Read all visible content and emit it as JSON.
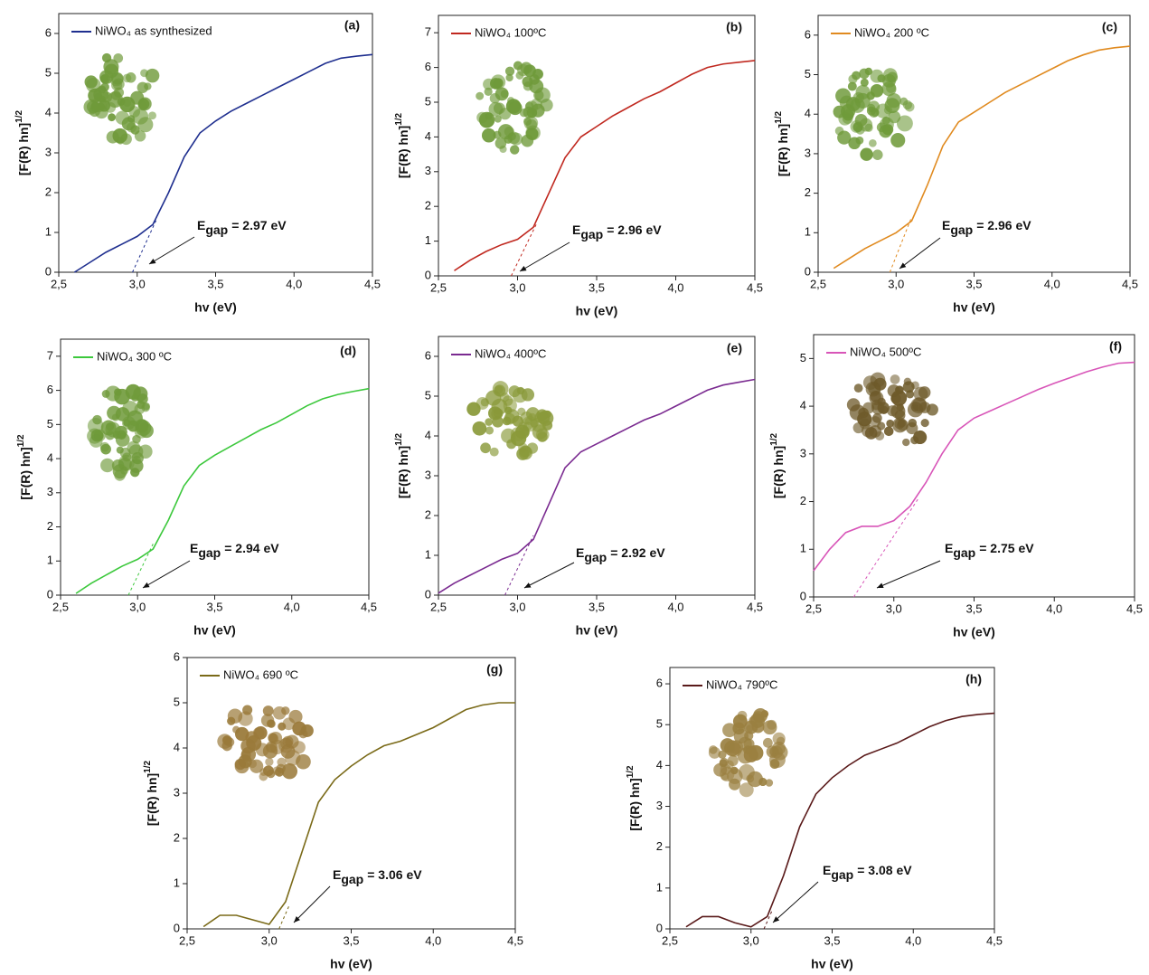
{
  "chart_data": [
    {
      "type": "line",
      "panel": "(a)",
      "x_label": "hv (eV)",
      "y_label": "[F(R) hn]",
      "y_label_exponent": "1/2",
      "x": [
        2.5,
        2.6,
        2.7,
        2.8,
        2.9,
        3.0,
        3.1,
        3.2,
        3.3,
        3.4,
        3.5,
        3.6,
        3.7,
        3.8,
        3.9,
        4.0,
        4.1,
        4.2,
        4.3,
        4.4,
        4.5
      ],
      "series": [
        {
          "name": "NiWO₄ as synthesized",
          "color": "#1f2f8f",
          "values": [
            null,
            0,
            0.25,
            0.5,
            0.7,
            0.9,
            1.2,
            2.0,
            2.9,
            3.5,
            3.8,
            4.05,
            4.25,
            4.45,
            4.65,
            4.85,
            5.05,
            5.25,
            5.38,
            5.43,
            5.47
          ]
        }
      ],
      "tangent": {
        "x": [
          2.97,
          3.12
        ],
        "values": [
          0,
          1.3
        ]
      },
      "annotation": {
        "symbol": "E",
        "subscript": "gap",
        "text": "= 2.97 eV"
      },
      "xlim": [
        2.5,
        4.5
      ],
      "ylim": [
        0,
        6.5
      ],
      "xticks": [
        {
          "value": 2.5,
          "label": "2,5"
        },
        {
          "value": 3.0,
          "label": "3,0"
        },
        {
          "value": 3.5,
          "label": "3,5"
        },
        {
          "value": 4.0,
          "label": "4,0"
        },
        {
          "value": 4.5,
          "label": "4,5"
        }
      ],
      "yticks": [
        0,
        1,
        2,
        3,
        4,
        5,
        6
      ]
    },
    {
      "type": "line",
      "panel": "(b)",
      "x_label": "hv (eV)",
      "y_label": "[F(R) hn]",
      "y_label_exponent": "1/2",
      "x": [
        2.5,
        2.6,
        2.7,
        2.8,
        2.9,
        3.0,
        3.1,
        3.2,
        3.3,
        3.4,
        3.5,
        3.6,
        3.7,
        3.8,
        3.9,
        4.0,
        4.1,
        4.2,
        4.3,
        4.4,
        4.5
      ],
      "series": [
        {
          "name": "NiWO₄ 100ºC",
          "color": "#c0281f",
          "values": [
            null,
            0.15,
            0.45,
            0.7,
            0.9,
            1.05,
            1.4,
            2.4,
            3.4,
            4.0,
            4.3,
            4.6,
            4.85,
            5.1,
            5.3,
            5.55,
            5.8,
            6.0,
            6.1,
            6.15,
            6.2
          ]
        }
      ],
      "tangent": {
        "x": [
          2.96,
          3.12
        ],
        "values": [
          0,
          1.5
        ]
      },
      "annotation": {
        "symbol": "E",
        "subscript": "gap",
        "text": "= 2.96 eV"
      },
      "xlim": [
        2.5,
        4.5
      ],
      "ylim": [
        0,
        7.5
      ],
      "xticks": [
        {
          "value": 2.5,
          "label": "2,5"
        },
        {
          "value": 3.0,
          "label": "3,0"
        },
        {
          "value": 3.5,
          "label": "3,5"
        },
        {
          "value": 4.0,
          "label": "4,0"
        },
        {
          "value": 4.5,
          "label": "4,5"
        }
      ],
      "yticks": [
        0,
        1,
        2,
        3,
        4,
        5,
        6,
        7
      ]
    },
    {
      "type": "line",
      "panel": "(c)",
      "x_label": "hv (eV)",
      "y_label": "[F(R) hn]",
      "y_label_exponent": "1/2",
      "x": [
        2.5,
        2.6,
        2.7,
        2.8,
        2.9,
        3.0,
        3.1,
        3.2,
        3.3,
        3.4,
        3.5,
        3.6,
        3.7,
        3.8,
        3.9,
        4.0,
        4.1,
        4.2,
        4.3,
        4.4,
        4.5
      ],
      "series": [
        {
          "name": "NiWO₄ 200 ºC",
          "color": "#e08a1f",
          "values": [
            null,
            0.1,
            0.35,
            0.6,
            0.8,
            1.0,
            1.3,
            2.2,
            3.2,
            3.8,
            4.05,
            4.3,
            4.55,
            4.75,
            4.95,
            5.15,
            5.35,
            5.5,
            5.62,
            5.68,
            5.72
          ]
        }
      ],
      "tangent": {
        "x": [
          2.96,
          3.1
        ],
        "values": [
          0,
          1.4
        ]
      },
      "annotation": {
        "symbol": "E",
        "subscript": "gap",
        "text": "= 2.96 eV"
      },
      "xlim": [
        2.5,
        4.5
      ],
      "ylim": [
        0,
        6.5
      ],
      "xticks": [
        {
          "value": 2.5,
          "label": "2,5"
        },
        {
          "value": 3.0,
          "label": "3,0"
        },
        {
          "value": 3.5,
          "label": "3,5"
        },
        {
          "value": 4.0,
          "label": "4,0"
        },
        {
          "value": 4.5,
          "label": "4,5"
        }
      ],
      "yticks": [
        0,
        1,
        2,
        3,
        4,
        5,
        6
      ]
    },
    {
      "type": "line",
      "panel": "(d)",
      "x_label": "hv (eV)",
      "y_label": "[F(R) hn]",
      "y_label_exponent": "1/2",
      "x": [
        2.5,
        2.6,
        2.7,
        2.8,
        2.9,
        3.0,
        3.1,
        3.2,
        3.3,
        3.4,
        3.5,
        3.6,
        3.7,
        3.8,
        3.9,
        4.0,
        4.1,
        4.2,
        4.3,
        4.4,
        4.5
      ],
      "series": [
        {
          "name": "NiWO₄ 300 ºC",
          "color": "#3cc83c",
          "values": [
            null,
            0.05,
            0.35,
            0.6,
            0.85,
            1.05,
            1.35,
            2.2,
            3.2,
            3.8,
            4.1,
            4.35,
            4.6,
            4.85,
            5.05,
            5.3,
            5.55,
            5.75,
            5.88,
            5.97,
            6.05
          ]
        }
      ],
      "tangent": {
        "x": [
          2.94,
          3.1
        ],
        "values": [
          0,
          1.5
        ]
      },
      "annotation": {
        "symbol": "E",
        "subscript": "gap",
        "text": "= 2.94 eV"
      },
      "xlim": [
        2.5,
        4.5
      ],
      "ylim": [
        0,
        7.5
      ],
      "xticks": [
        {
          "value": 2.5,
          "label": "2,5"
        },
        {
          "value": 3.0,
          "label": "3,0"
        },
        {
          "value": 3.5,
          "label": "3,5"
        },
        {
          "value": 4.0,
          "label": "4,0"
        },
        {
          "value": 4.5,
          "label": "4,5"
        }
      ],
      "yticks": [
        0,
        1,
        2,
        3,
        4,
        5,
        6,
        7
      ]
    },
    {
      "type": "line",
      "panel": "(e)",
      "x_label": "hv (eV)",
      "y_label": "[F(R) hn]",
      "y_label_exponent": "1/2",
      "x": [
        2.5,
        2.6,
        2.7,
        2.8,
        2.9,
        3.0,
        3.1,
        3.2,
        3.3,
        3.4,
        3.5,
        3.6,
        3.7,
        3.8,
        3.9,
        4.0,
        4.1,
        4.2,
        4.3,
        4.4,
        4.5
      ],
      "series": [
        {
          "name": "NiWO₄ 400ºC",
          "color": "#7a2a90",
          "values": [
            0.05,
            0.3,
            0.5,
            0.7,
            0.9,
            1.05,
            1.4,
            2.3,
            3.2,
            3.6,
            3.8,
            4.0,
            4.2,
            4.4,
            4.55,
            4.75,
            4.95,
            5.15,
            5.28,
            5.35,
            5.42
          ]
        }
      ],
      "tangent": {
        "x": [
          2.92,
          3.1
        ],
        "values": [
          0,
          1.5
        ]
      },
      "annotation": {
        "symbol": "E",
        "subscript": "gap",
        "text": "= 2.92 eV"
      },
      "xlim": [
        2.5,
        4.5
      ],
      "ylim": [
        0,
        6.5
      ],
      "xticks": [
        {
          "value": 2.5,
          "label": "2,5"
        },
        {
          "value": 3.0,
          "label": "3,0"
        },
        {
          "value": 3.5,
          "label": "3,5"
        },
        {
          "value": 4.0,
          "label": "4,0"
        },
        {
          "value": 4.5,
          "label": "4,5"
        }
      ],
      "yticks": [
        0,
        1,
        2,
        3,
        4,
        5,
        6
      ]
    },
    {
      "type": "line",
      "panel": "(f)",
      "x_label": "hv (eV)",
      "y_label": "[F(R) hn]",
      "y_label_exponent": "1/2",
      "x": [
        2.5,
        2.6,
        2.7,
        2.8,
        2.9,
        3.0,
        3.1,
        3.2,
        3.3,
        3.4,
        3.5,
        3.6,
        3.7,
        3.8,
        3.9,
        4.0,
        4.1,
        4.2,
        4.3,
        4.4,
        4.5
      ],
      "series": [
        {
          "name": "NiWO₄ 500ºC",
          "color": "#d855b8",
          "values": [
            0.55,
            1.0,
            1.35,
            1.48,
            1.48,
            1.6,
            1.9,
            2.4,
            3.0,
            3.5,
            3.75,
            3.9,
            4.05,
            4.2,
            4.35,
            4.48,
            4.6,
            4.72,
            4.82,
            4.9,
            4.92
          ]
        }
      ],
      "tangent": {
        "x": [
          2.75,
          3.15
        ],
        "values": [
          0,
          2.05
        ]
      },
      "annotation": {
        "symbol": "E",
        "subscript": "gap",
        "text": "= 2.75 eV"
      },
      "xlim": [
        2.5,
        4.5
      ],
      "ylim": [
        0,
        5.5
      ],
      "xticks": [
        {
          "value": 2.5,
          "label": "2,5"
        },
        {
          "value": 3.0,
          "label": "3,0"
        },
        {
          "value": 3.5,
          "label": "3,5"
        },
        {
          "value": 4.0,
          "label": "4,0"
        },
        {
          "value": 4.5,
          "label": "4,5"
        }
      ],
      "yticks": [
        0,
        1,
        2,
        3,
        4,
        5
      ]
    },
    {
      "type": "line",
      "panel": "(g)",
      "x_label": "hv (eV)",
      "y_label": "[F(R) hn]",
      "y_label_exponent": "1/2",
      "x": [
        2.5,
        2.6,
        2.7,
        2.8,
        2.9,
        3.0,
        3.1,
        3.2,
        3.3,
        3.4,
        3.5,
        3.6,
        3.7,
        3.8,
        3.9,
        4.0,
        4.1,
        4.2,
        4.3,
        4.4,
        4.5
      ],
      "series": [
        {
          "name": "NiWO₄ 690 ºC",
          "color": "#7a6a18",
          "values": [
            null,
            0.05,
            0.3,
            0.3,
            0.2,
            0.1,
            0.6,
            1.7,
            2.8,
            3.3,
            3.6,
            3.85,
            4.05,
            4.15,
            4.3,
            4.45,
            4.65,
            4.85,
            4.95,
            5.0,
            5.0
          ]
        }
      ],
      "tangent": {
        "x": [
          3.06,
          3.12
        ],
        "values": [
          0,
          0.5
        ]
      },
      "annotation": {
        "symbol": "E",
        "subscript": "gap",
        "text": "= 3.06 eV"
      },
      "xlim": [
        2.5,
        4.5
      ],
      "ylim": [
        0,
        6
      ],
      "xticks": [
        {
          "value": 2.5,
          "label": "2,5"
        },
        {
          "value": 3.0,
          "label": "3,0"
        },
        {
          "value": 3.5,
          "label": "3,5"
        },
        {
          "value": 4.0,
          "label": "4,0"
        },
        {
          "value": 4.5,
          "label": "4,5"
        }
      ],
      "yticks": [
        0,
        1,
        2,
        3,
        4,
        5,
        6
      ]
    },
    {
      "type": "line",
      "panel": "(h)",
      "x_label": "hv (eV)",
      "y_label": "[F(R) hn]",
      "y_label_exponent": "1/2",
      "x": [
        2.5,
        2.6,
        2.7,
        2.8,
        2.9,
        3.0,
        3.1,
        3.2,
        3.3,
        3.4,
        3.5,
        3.6,
        3.7,
        3.8,
        3.9,
        4.0,
        4.1,
        4.2,
        4.3,
        4.4,
        4.5
      ],
      "series": [
        {
          "name": "NiWO₄ 790ºC",
          "color": "#5a1a1a",
          "values": [
            null,
            0.05,
            0.3,
            0.3,
            0.15,
            0.05,
            0.3,
            1.3,
            2.5,
            3.3,
            3.7,
            4.0,
            4.25,
            4.4,
            4.55,
            4.75,
            4.95,
            5.1,
            5.2,
            5.25,
            5.28
          ]
        }
      ],
      "tangent": {
        "x": [
          3.08,
          3.13
        ],
        "values": [
          0,
          0.45
        ]
      },
      "annotation": {
        "symbol": "E",
        "subscript": "gap",
        "text": "= 3.08 eV"
      },
      "xlim": [
        2.5,
        4.5
      ],
      "ylim": [
        0,
        6.4
      ],
      "xticks": [
        {
          "value": 2.5,
          "label": "2,5"
        },
        {
          "value": 3.0,
          "label": "3,0"
        },
        {
          "value": 3.5,
          "label": "3,5"
        },
        {
          "value": 4.0,
          "label": "4,0"
        },
        {
          "value": 4.5,
          "label": "4,5"
        }
      ],
      "yticks": [
        0,
        1,
        2,
        3,
        4,
        5,
        6
      ]
    }
  ]
}
